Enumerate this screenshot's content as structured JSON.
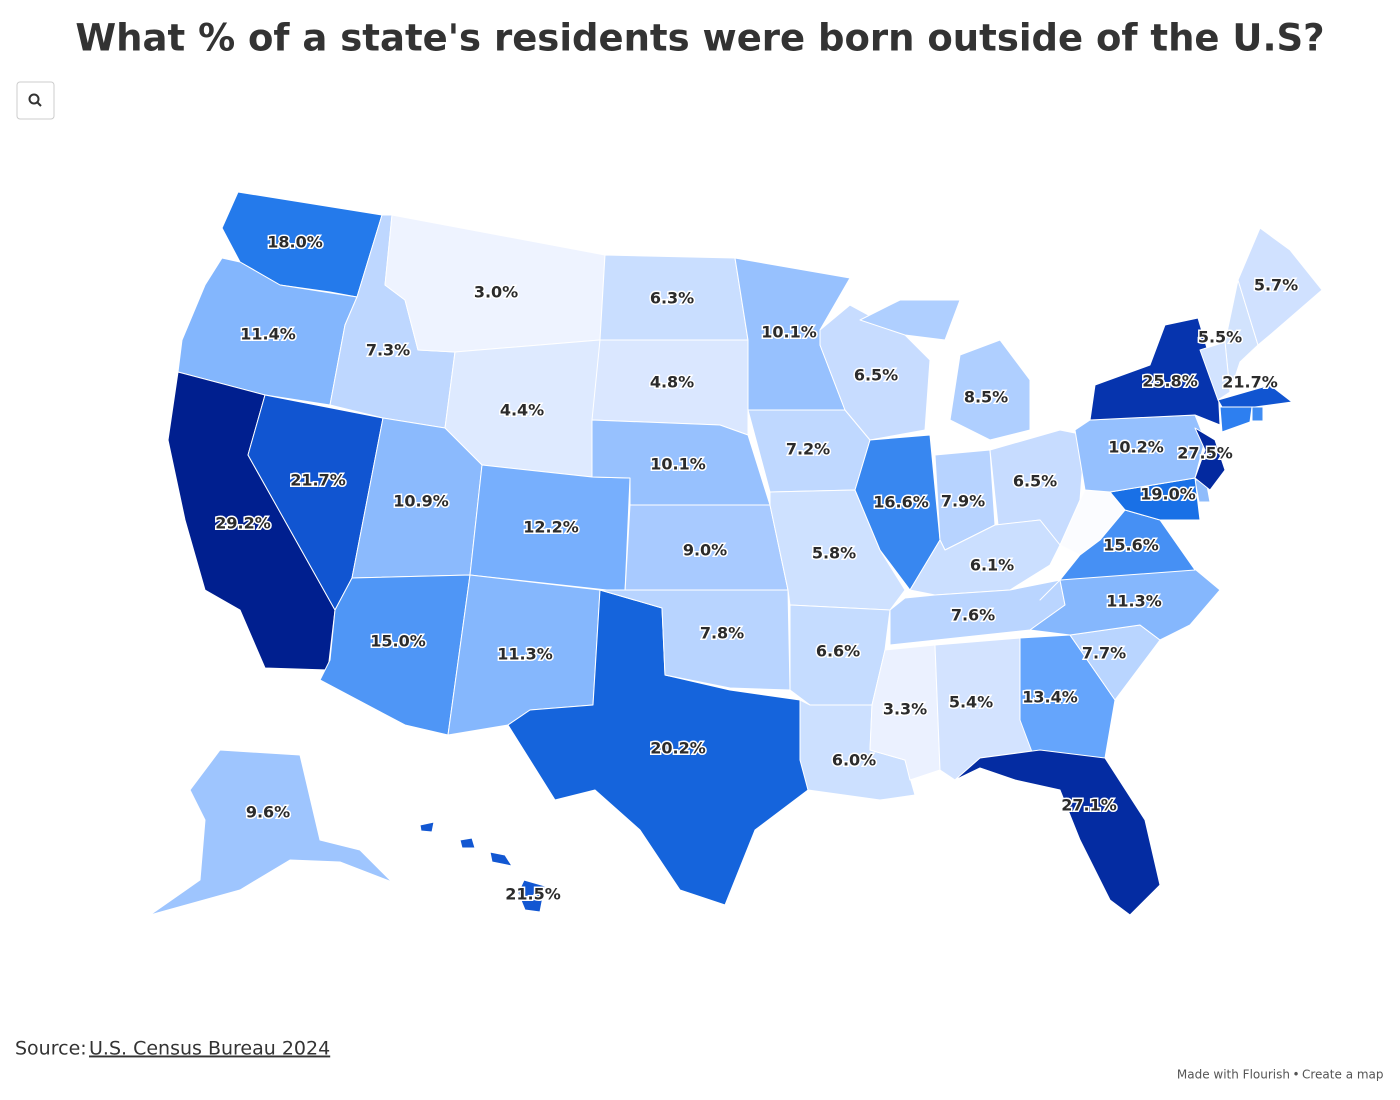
{
  "map": {
    "type": "choropleth",
    "title": "What % of a state's residents were born outside of the U.S?",
    "color_scale": [
      "#eef3ff",
      "#b3d1ff",
      "#64a4fc",
      "#1a73e8",
      "#0a3fbf",
      "#001f8f"
    ],
    "values": [
      18.0,
      11.4,
      29.2,
      21.7,
      7.3,
      3.0,
      4.4,
      10.9,
      15.0,
      12.2,
      11.3,
      20.2,
      6.3,
      4.8,
      10.1,
      9.0,
      7.8,
      10.1,
      7.2,
      5.8,
      6.6,
      6.0,
      6.5,
      16.6,
      8.5,
      7.9,
      6.5,
      6.1,
      7.6,
      3.3,
      5.4,
      13.4,
      27.1,
      7.7,
      11.3,
      15.6,
      19.0,
      10.2,
      25.8,
      27.5,
      5.5,
      5.7,
      21.7,
      9.6,
      21.5
    ],
    "value_labels": [
      "18.0%",
      "11.4%",
      "29.2%",
      "21.7%",
      "7.3%",
      "3.0%",
      "4.4%",
      "10.9%",
      "15.0%",
      "12.2%",
      "11.3%",
      "20.2%",
      "6.3%",
      "4.8%",
      "10.1%",
      "9.0%",
      "7.8%",
      "10.1%",
      "7.2%",
      "5.8%",
      "6.6%",
      "6.0%",
      "6.5%",
      "16.6%",
      "8.5%",
      "7.9%",
      "6.5%",
      "6.1%",
      "7.6%",
      "3.3%",
      "5.4%",
      "13.4%",
      "27.1%",
      "7.7%",
      "11.3%",
      "15.6%",
      "19.0%",
      "10.2%",
      "25.8%",
      "27.5%",
      "5.5%",
      "5.7%",
      "21.7%",
      "9.6%",
      "21.5%"
    ]
  },
  "source": {
    "prefix": "Source:",
    "link": "U.S. Census Bureau 2024"
  },
  "footer": {
    "made": "Made with Flourish",
    "separator": "•",
    "create": "Create a map"
  }
}
